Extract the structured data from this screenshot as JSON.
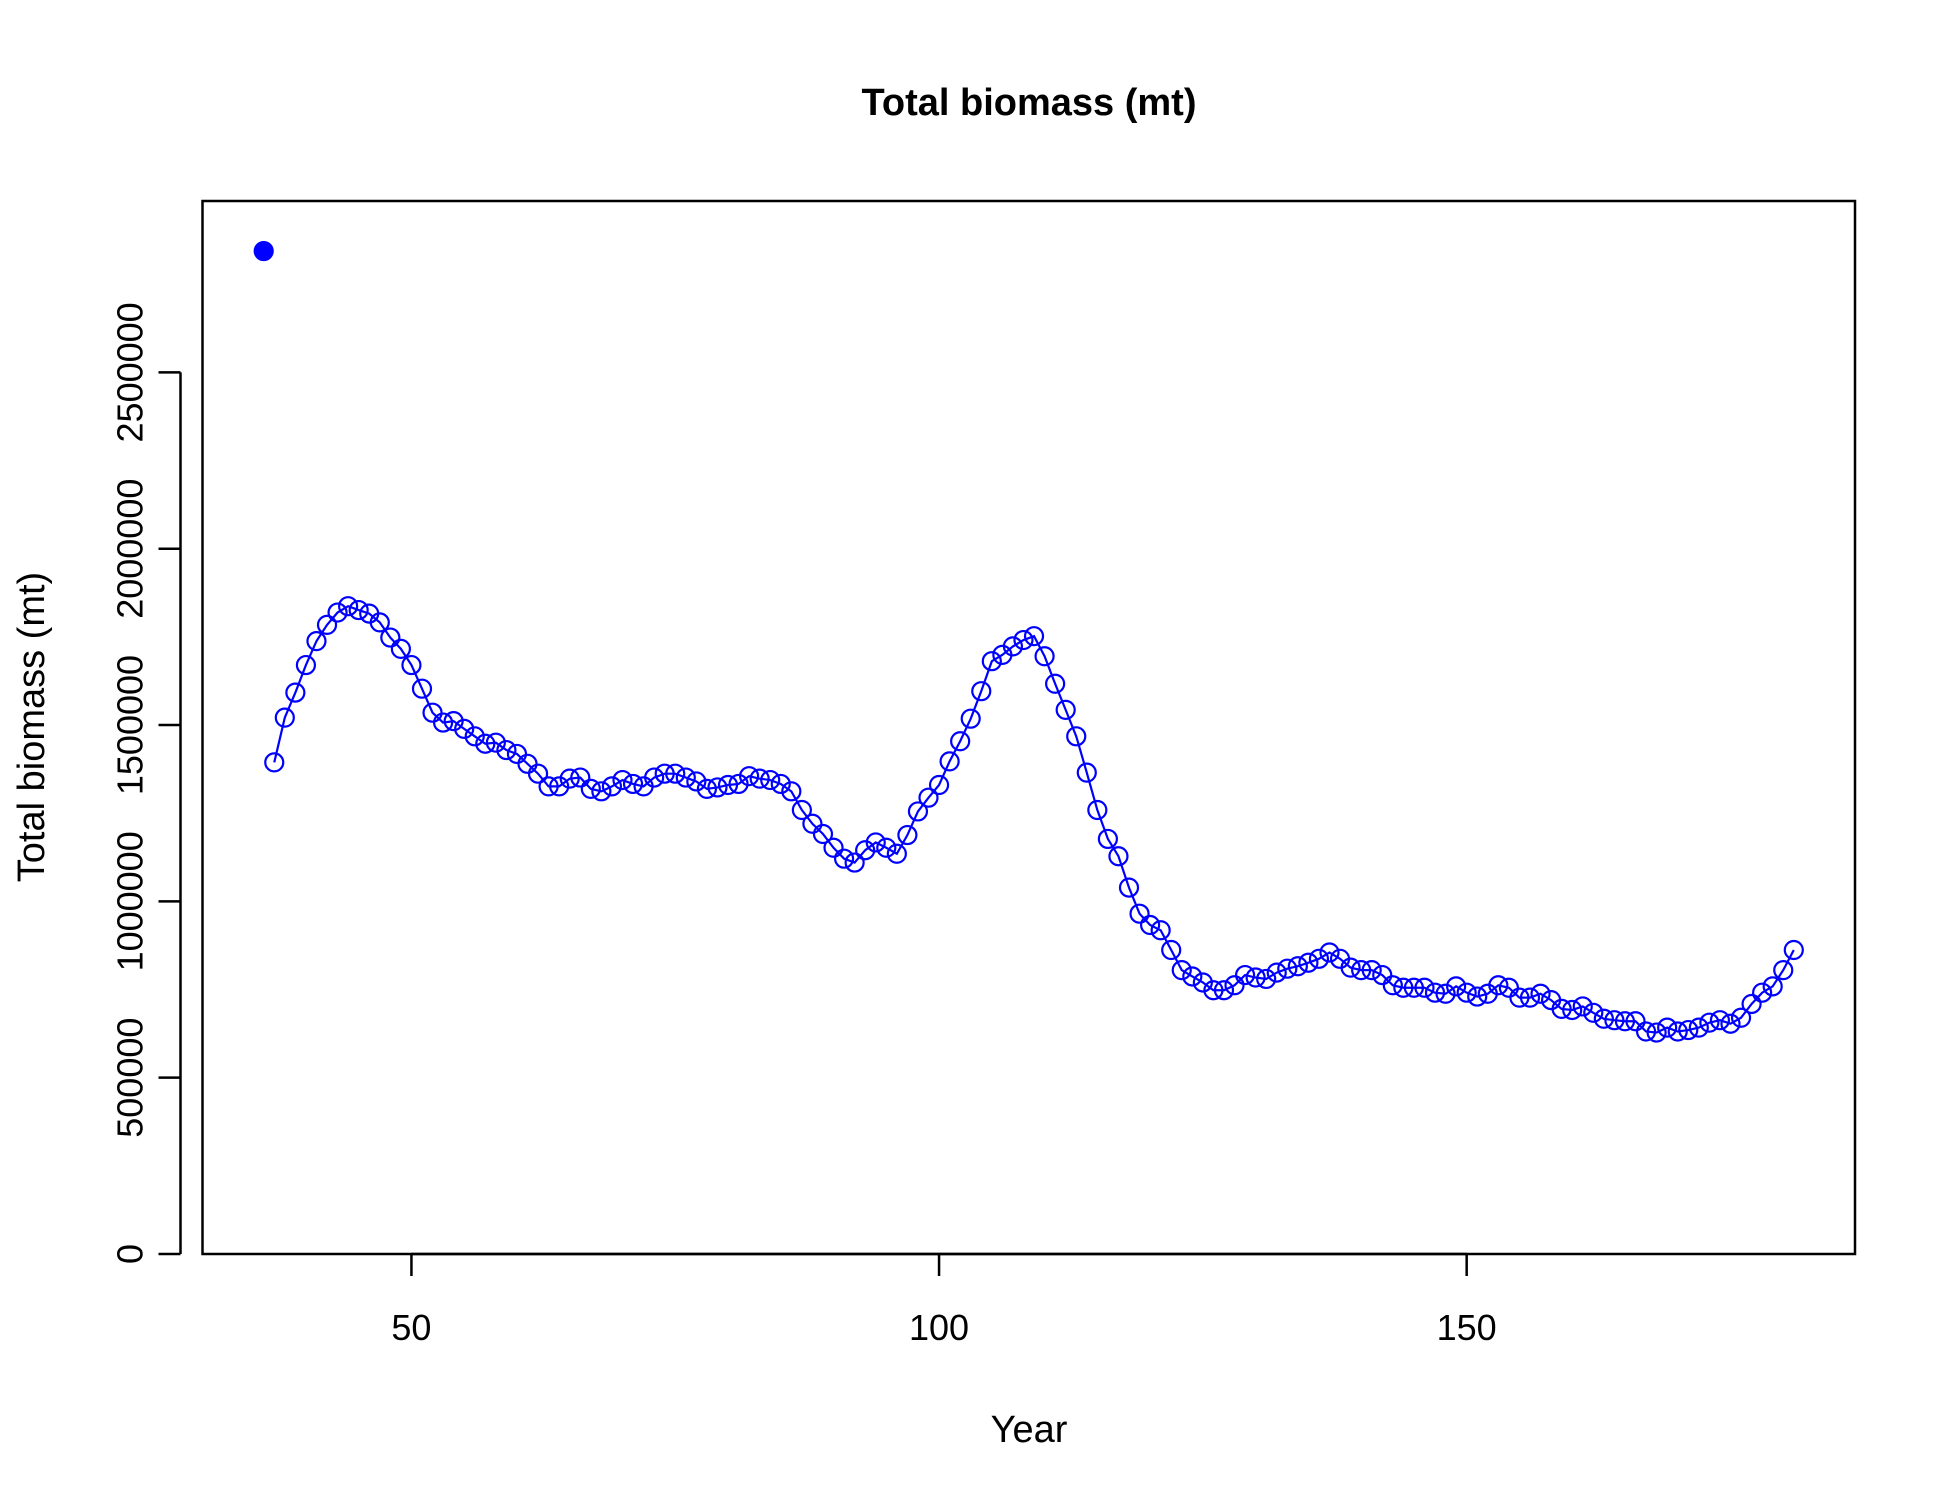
{
  "chart_data": {
    "type": "line",
    "title": "Total biomass (mt)",
    "x_label": "Year",
    "y_label": "Total biomass (mt)",
    "xlim": [
      30.2,
      186.8
    ],
    "ylim": [
      0,
      2986000
    ],
    "xticks": [
      50,
      100,
      150
    ],
    "yticks": [
      0,
      500000,
      1000000,
      1500000,
      2000000,
      2500000
    ],
    "grid": false,
    "series": [
      {
        "color": "#0000ff",
        "style": "point",
        "x": [
          36
        ],
        "values": [
          2844000
        ]
      },
      {
        "color": "#0000ff",
        "style": "line-points",
        "x": [
          37,
          38,
          39,
          40,
          41,
          42,
          43,
          44,
          45,
          46,
          47,
          48,
          49,
          50,
          51,
          52,
          53,
          54,
          55,
          56,
          57,
          58,
          59,
          60,
          61,
          62,
          63,
          64,
          65,
          66,
          67,
          68,
          69,
          70,
          71,
          72,
          73,
          74,
          75,
          76,
          77,
          78,
          79,
          80,
          81,
          82,
          83,
          84,
          85,
          86,
          87,
          88,
          89,
          90,
          91,
          92,
          93,
          94,
          95,
          96,
          97,
          98,
          99,
          100,
          101,
          102,
          103,
          104,
          105,
          106,
          107,
          108,
          109,
          110,
          111,
          112,
          113,
          114,
          115,
          116,
          117,
          118,
          119,
          120,
          121,
          122,
          123,
          124,
          125,
          126,
          127,
          128,
          129,
          130,
          131,
          132,
          133,
          134,
          135,
          136,
          137,
          138,
          139,
          140,
          141,
          142,
          143,
          144,
          145,
          146,
          147,
          148,
          149,
          150,
          151,
          152,
          153,
          154,
          155,
          156,
          157,
          158,
          159,
          160,
          161,
          162,
          163,
          164,
          165,
          166,
          167,
          168,
          169,
          170,
          171,
          172,
          173,
          174,
          175,
          176,
          177,
          178,
          179,
          180,
          181
        ],
        "values": [
          1394000,
          1521000,
          1592000,
          1670000,
          1738000,
          1784000,
          1819000,
          1837000,
          1826000,
          1816000,
          1791000,
          1748000,
          1716000,
          1670000,
          1603000,
          1535000,
          1507000,
          1511000,
          1489000,
          1468000,
          1447000,
          1450000,
          1429000,
          1418000,
          1390000,
          1362000,
          1326000,
          1326000,
          1348000,
          1351000,
          1319000,
          1312000,
          1326000,
          1344000,
          1333000,
          1326000,
          1351000,
          1362000,
          1362000,
          1351000,
          1340000,
          1319000,
          1323000,
          1330000,
          1333000,
          1355000,
          1348000,
          1344000,
          1333000,
          1312000,
          1259000,
          1220000,
          1191000,
          1152000,
          1121000,
          1110000,
          1145000,
          1167000,
          1152000,
          1135000,
          1188000,
          1255000,
          1294000,
          1330000,
          1397000,
          1454000,
          1518000,
          1596000,
          1681000,
          1699000,
          1723000,
          1741000,
          1752000,
          1695000,
          1617000,
          1543000,
          1468000,
          1365000,
          1259000,
          1177000,
          1128000,
          1039000,
          965000,
          933000,
          918000,
          862000,
          805000,
          787000,
          770000,
          748000,
          748000,
          762000,
          791000,
          784000,
          780000,
          798000,
          809000,
          816000,
          826000,
          837000,
          855000,
          837000,
          812000,
          805000,
          805000,
          791000,
          762000,
          755000,
          755000,
          755000,
          741000,
          738000,
          759000,
          741000,
          730000,
          738000,
          762000,
          755000,
          727000,
          727000,
          738000,
          720000,
          695000,
          692000,
          702000,
          684000,
          667000,
          663000,
          660000,
          660000,
          631000,
          628000,
          642000,
          631000,
          635000,
          642000,
          656000,
          663000,
          653000,
          670000,
          709000,
          741000,
          759000,
          805000,
          862000
        ]
      }
    ]
  }
}
